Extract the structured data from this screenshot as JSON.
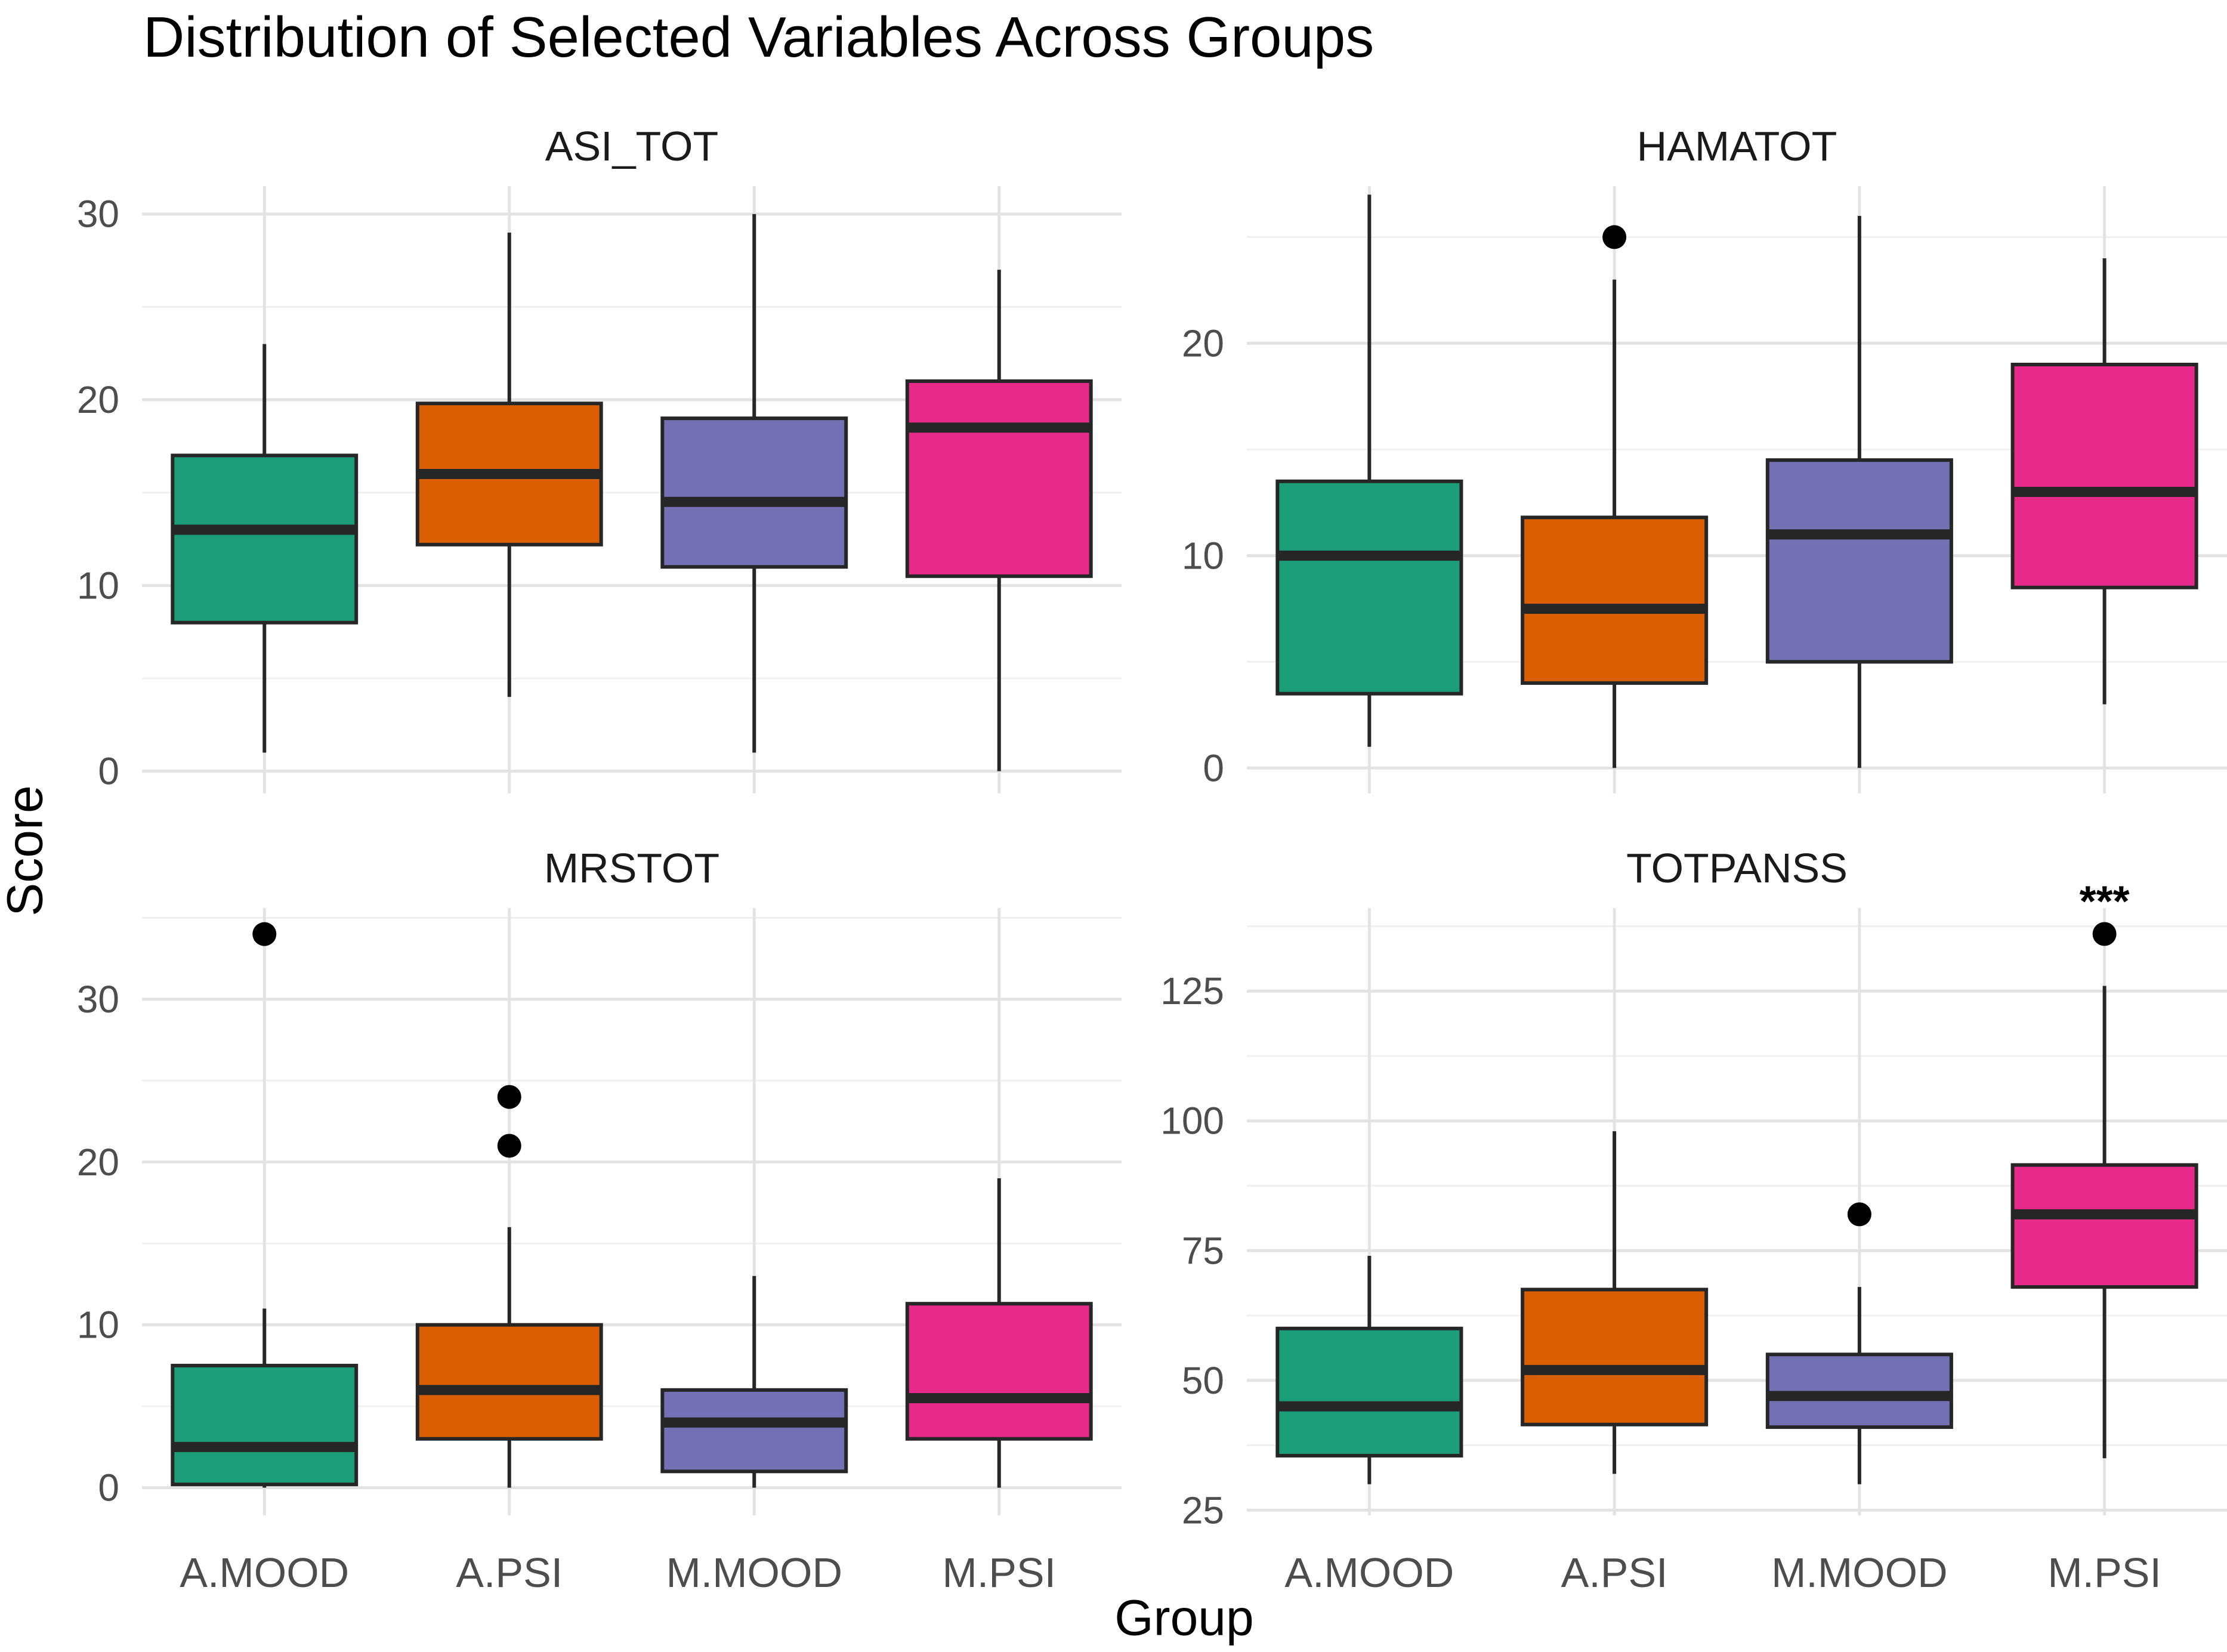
{
  "chart_data": {
    "type": "boxplot",
    "title": "Distribution of Selected Variables Across Groups",
    "xlabel": "Group",
    "ylabel": "Score",
    "categories": [
      "A.MOOD",
      "A.PSI",
      "M.MOOD",
      "M.PSI"
    ],
    "colors": [
      "#1b9e77",
      "#d95f02",
      "#7570b3",
      "#e7298a"
    ],
    "panels": [
      {
        "name": "ASI_TOT",
        "ylim": [
          -1.2,
          31.5
        ],
        "yticks": [
          0,
          10,
          20,
          30
        ],
        "yminor": [
          5,
          15,
          25
        ],
        "tick_labels": [
          "0",
          "10",
          "20",
          "30"
        ],
        "boxes": [
          {
            "min": 1,
            "q1": 8,
            "median": 13,
            "q3": 17,
            "max": 23,
            "outliers": []
          },
          {
            "min": 4,
            "q1": 12.2,
            "median": 16,
            "q3": 19.8,
            "max": 29,
            "outliers": []
          },
          {
            "min": 1,
            "q1": 11,
            "median": 14.5,
            "q3": 19,
            "max": 30,
            "outliers": []
          },
          {
            "min": 0,
            "q1": 10.5,
            "median": 18.5,
            "q3": 21,
            "max": 27,
            "outliers": []
          }
        ],
        "annotation": ""
      },
      {
        "name": "HAMATOT",
        "ylim": [
          -1.2,
          27.4
        ],
        "yticks": [
          0,
          10,
          20
        ],
        "yminor": [
          5,
          15,
          25
        ],
        "tick_labels": [
          "0",
          "10",
          "20"
        ],
        "boxes": [
          {
            "min": 1,
            "q1": 3.5,
            "median": 10,
            "q3": 13.5,
            "max": 27,
            "outliers": []
          },
          {
            "min": 0,
            "q1": 4,
            "median": 7.5,
            "q3": 11.8,
            "max": 23,
            "outliers": [
              25
            ]
          },
          {
            "min": 0,
            "q1": 5,
            "median": 11,
            "q3": 14.5,
            "max": 26,
            "outliers": []
          },
          {
            "min": 3,
            "q1": 8.5,
            "median": 13,
            "q3": 19,
            "max": 24,
            "outliers": []
          }
        ],
        "annotation": ""
      },
      {
        "name": "MRSTOT",
        "ylim": [
          -1.7,
          35.6
        ],
        "yticks": [
          0,
          10,
          20,
          30
        ],
        "yminor": [
          5,
          15,
          25,
          35
        ],
        "tick_labels": [
          "0",
          "10",
          "20",
          "30"
        ],
        "boxes": [
          {
            "min": 0,
            "q1": 0.2,
            "median": 2.5,
            "q3": 7.5,
            "max": 11,
            "outliers": [
              34
            ]
          },
          {
            "min": 0,
            "q1": 3,
            "median": 6,
            "q3": 10,
            "max": 16,
            "outliers": [
              21,
              24
            ]
          },
          {
            "min": 0,
            "q1": 1,
            "median": 4,
            "q3": 6,
            "max": 13,
            "outliers": []
          },
          {
            "min": 0,
            "q1": 3,
            "median": 5.5,
            "q3": 11.3,
            "max": 19,
            "outliers": []
          }
        ],
        "annotation": ""
      },
      {
        "name": "TOTPANSS",
        "ylim": [
          24,
          141
        ],
        "yticks": [
          25,
          50,
          75,
          100,
          125
        ],
        "yminor": [
          37.5,
          62.5,
          87.5,
          112.5,
          137.5
        ],
        "tick_labels": [
          "25",
          "50",
          "75",
          "100",
          "125"
        ],
        "boxes": [
          {
            "min": 30,
            "q1": 35.5,
            "median": 45,
            "q3": 60,
            "max": 74,
            "outliers": []
          },
          {
            "min": 32,
            "q1": 41.5,
            "median": 52,
            "q3": 67.5,
            "max": 98,
            "outliers": []
          },
          {
            "min": 30,
            "q1": 41,
            "median": 47,
            "q3": 55,
            "max": 68,
            "outliers": [
              82
            ]
          },
          {
            "min": 35,
            "q1": 68,
            "median": 82,
            "q3": 91.5,
            "max": 126,
            "outliers": [
              136
            ]
          }
        ],
        "annotation": "***"
      }
    ]
  }
}
